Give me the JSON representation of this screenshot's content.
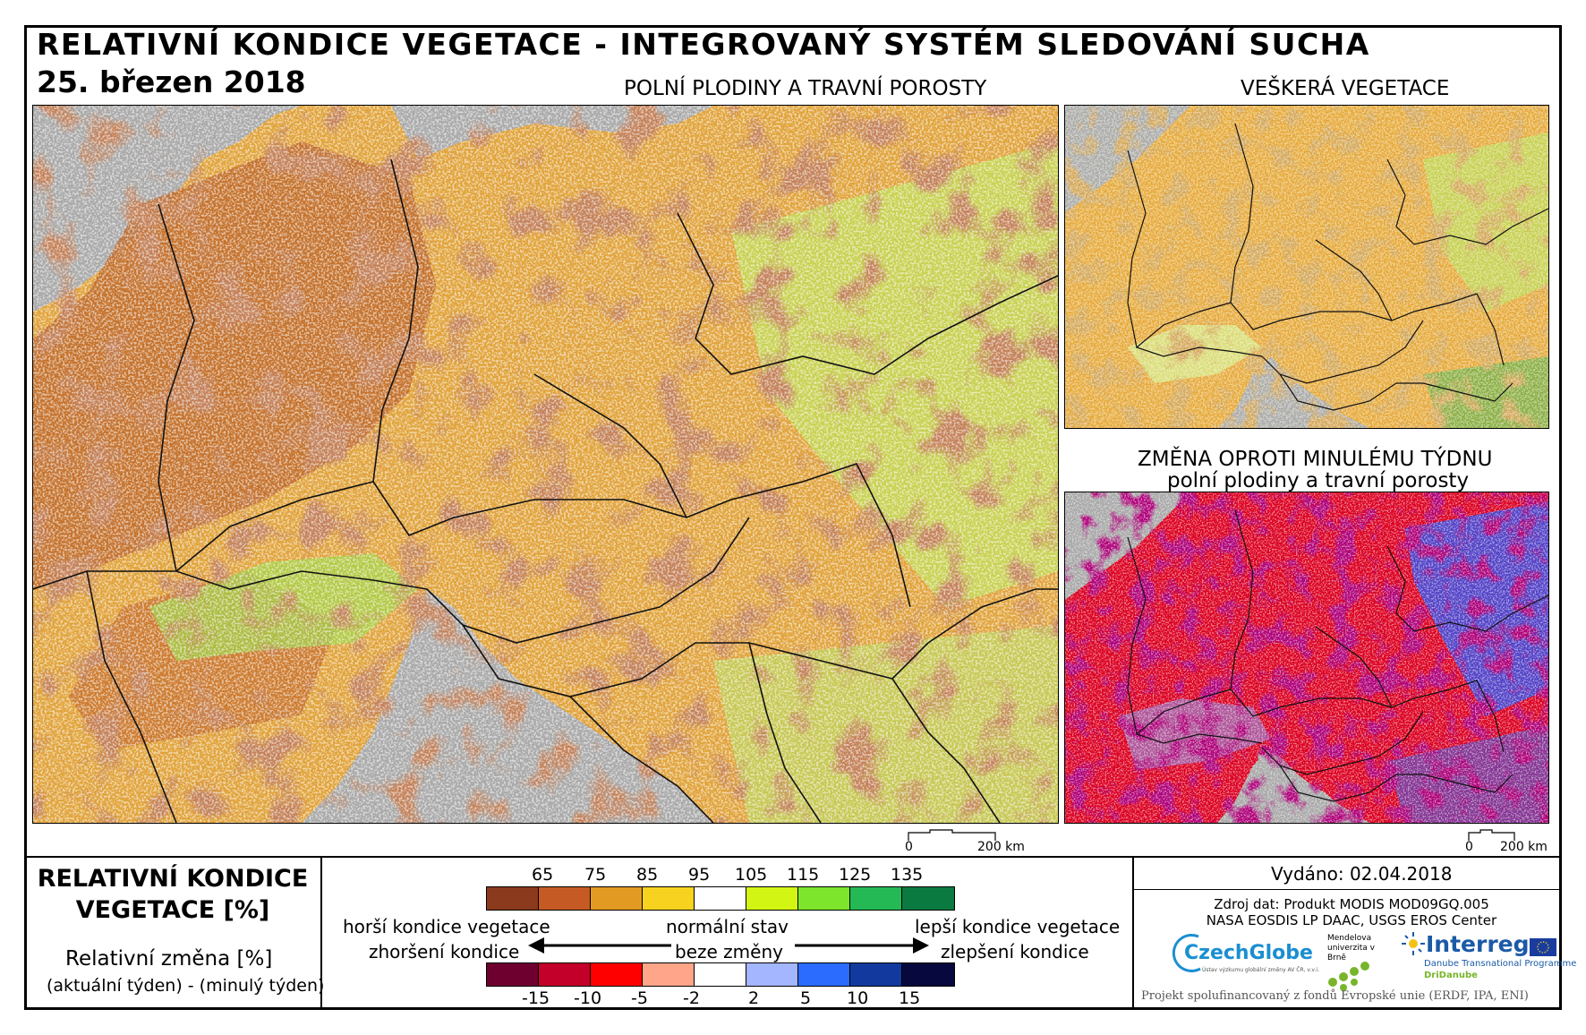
{
  "header": {
    "title": "RELATIVNÍ KONDICE VEGETACE - INTEGROVANÝ SYSTÉM SLEDOVÁNÍ SUCHA",
    "date": "25. březen 2018"
  },
  "maps": {
    "main_title": "POLNÍ PLODINY A TRAVNÍ POROSTY",
    "right_top_title": "VEŠKERÁ VEGETACE",
    "right_bottom_title": "ZMĚNA OPROTI MINULÉMU TÝDNU",
    "right_bottom_subtitle": "polní plodiny a travní porosty",
    "scale_zero": "0",
    "scale_label": "200 km"
  },
  "legend": {
    "title_line1": "RELATIVNÍ KONDICE",
    "title_line2": "VEGETACE [%]",
    "change_title": "Relativní změna [%]",
    "change_sub": "(aktuální týden) - (minulý týden)",
    "condition_ticks": [
      "65",
      "75",
      "85",
      "95",
      "105",
      "115",
      "125",
      "135"
    ],
    "condition_colors": [
      "#8b3a1e",
      "#c55a24",
      "#e39a22",
      "#f7d31f",
      "#ffffff",
      "#d3f514",
      "#7ee52d",
      "#25b956",
      "#0b7a40"
    ],
    "change_ticks": [
      "-15",
      "-10",
      "-5",
      "-2",
      "2",
      "5",
      "10",
      "15"
    ],
    "change_colors": [
      "#6e0030",
      "#c2002a",
      "#ff0000",
      "#ffa58a",
      "#ffffff",
      "#a3b6ff",
      "#2b6cff",
      "#123a9e",
      "#07083d"
    ],
    "worse_condition": "horší kondice vegetace",
    "normal_state": "normální stav",
    "better_condition": "lepší kondice vegetace",
    "worsening": "zhoršení kondice",
    "no_change": "beze změny",
    "improvement": "zlepšení kondice"
  },
  "info": {
    "issued": "Vydáno: 02.04.2018",
    "source_line1": "Zdroj dat: Produkt MODIS MOD09GQ.005",
    "source_line2": "NASA EOSDIS LP DAAC, USGS EROS Center",
    "czechglobe": "CzechGlobe",
    "czechglobe_sub": "Ústav výzkumu globální změny AV ČR, v.v.i.",
    "mendel": "Mendelova univerzita v Brně",
    "interreg": "Interreg",
    "interreg_sub": "Danube Transnational Programme",
    "dridanube": "DriDanube",
    "cofinanced": "Projekt spolufinancovaný z fondů Evropské unie (ERDF, IPA, ENI)"
  }
}
